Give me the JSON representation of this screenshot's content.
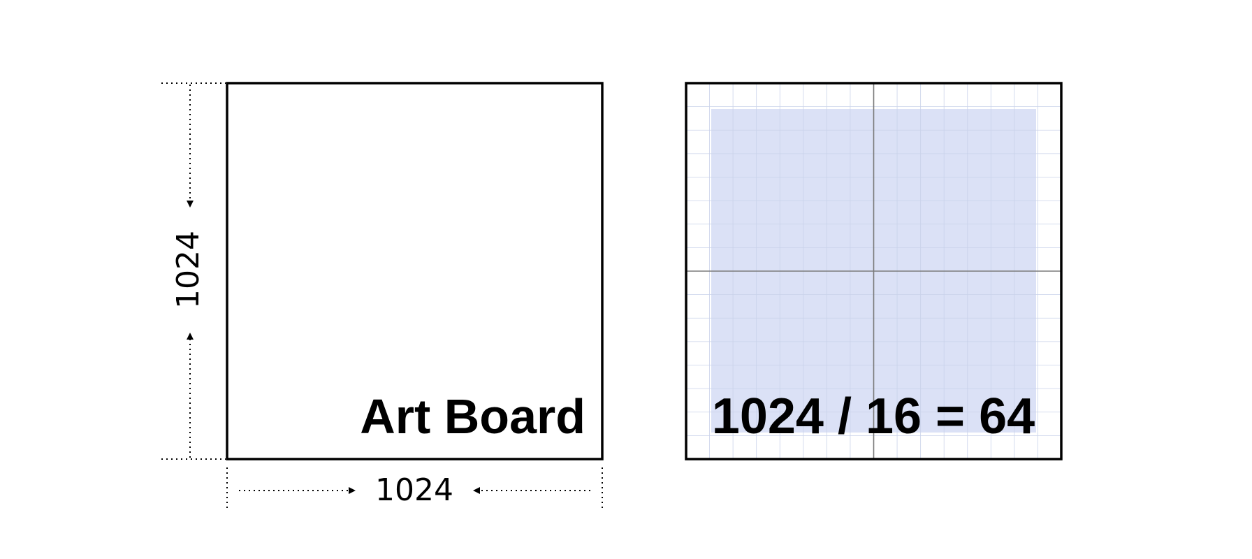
{
  "artboard": {
    "label": "Art Board",
    "height_label": "1024",
    "width_label": "1024"
  },
  "grid_board": {
    "equation": "1024 / 16 = 64",
    "grid_divisions": 16,
    "keyline_color": "#dbe1f6",
    "grid_line_color": "#c9d2ea",
    "axis_color": "#7a7a7a"
  },
  "colors": {
    "stroke": "#000000",
    "background": "#ffffff"
  }
}
